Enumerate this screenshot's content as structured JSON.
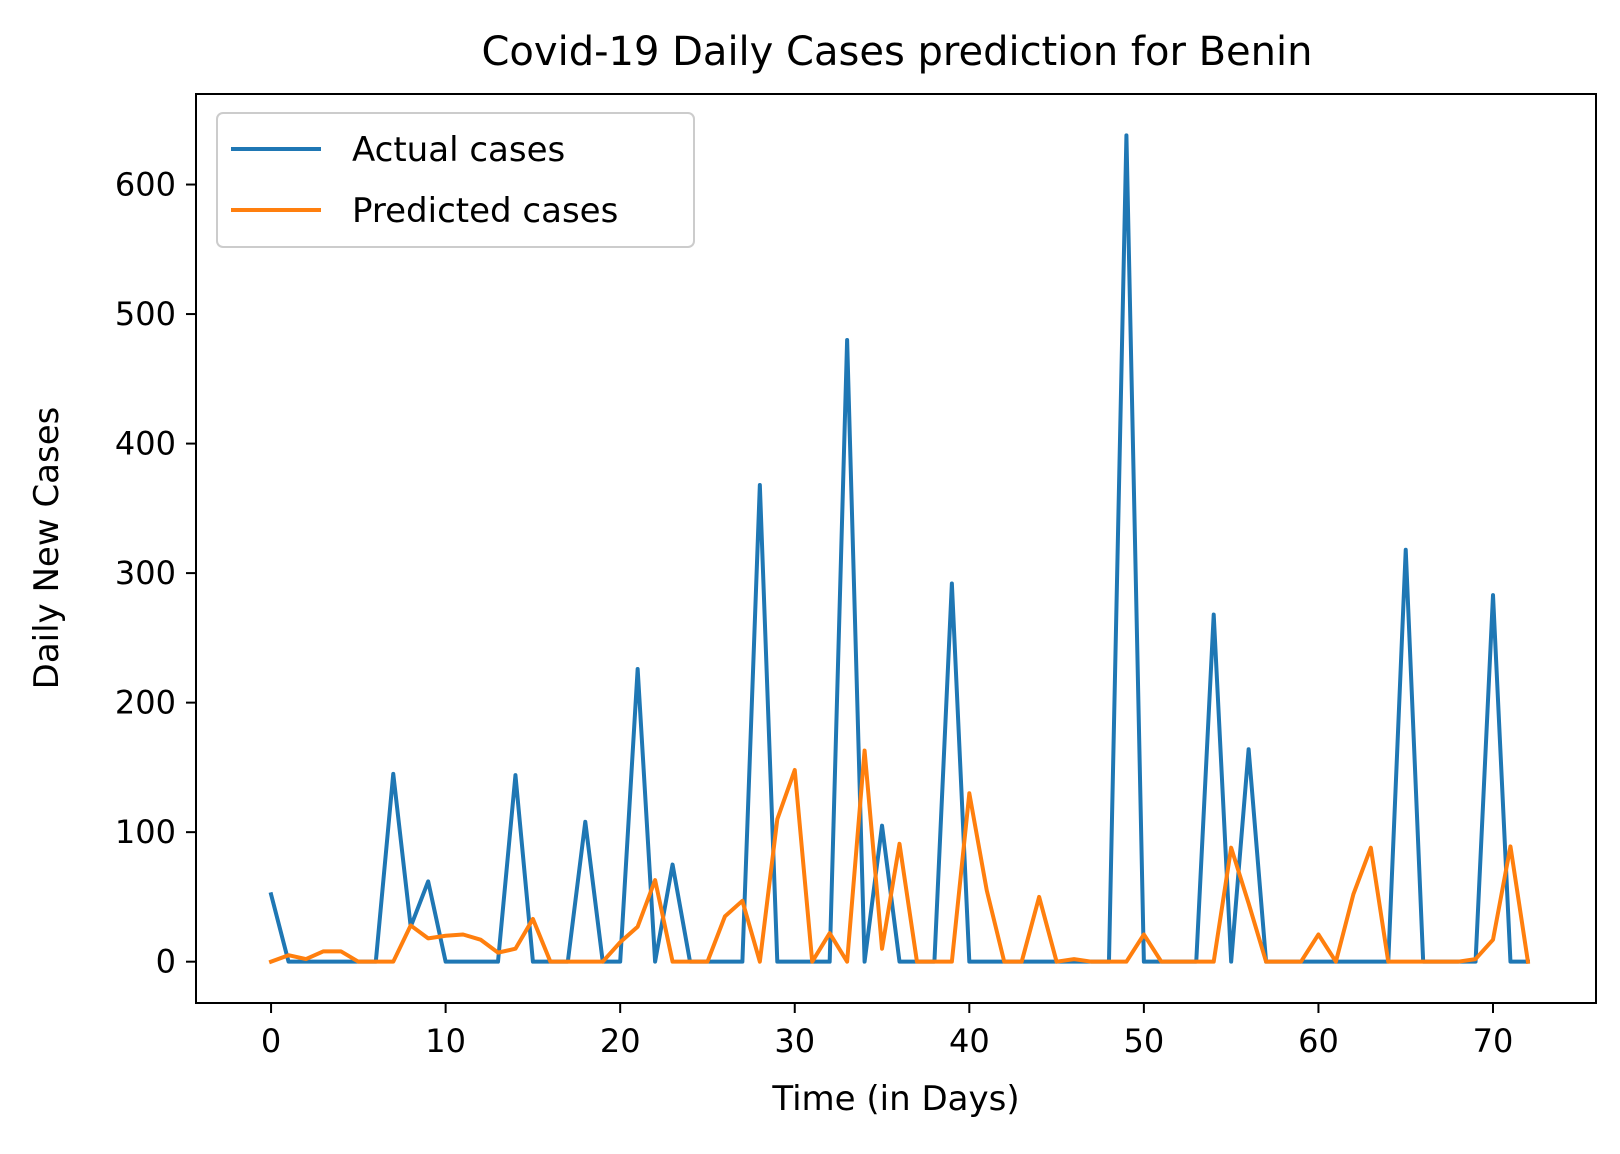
{
  "chart_data": {
    "type": "line",
    "title": "Covid-19 Daily Cases prediction for Benin",
    "xlabel": "Time (in Days)",
    "ylabel": "Daily New Cases",
    "xlim": [
      -4.3,
      75.9
    ],
    "ylim": [
      -31.9,
      669.9
    ],
    "xticks": [
      0,
      10,
      20,
      30,
      40,
      50,
      60,
      70
    ],
    "yticks": [
      0,
      100,
      200,
      300,
      400,
      500,
      600
    ],
    "grid": false,
    "legend_position": "top-left",
    "x": [
      0,
      1,
      2,
      3,
      4,
      5,
      6,
      7,
      8,
      9,
      10,
      11,
      12,
      13,
      14,
      15,
      16,
      17,
      18,
      19,
      20,
      21,
      22,
      23,
      24,
      25,
      26,
      27,
      28,
      29,
      30,
      31,
      32,
      33,
      34,
      35,
      36,
      37,
      38,
      39,
      40,
      41,
      42,
      43,
      44,
      45,
      46,
      47,
      48,
      49,
      50,
      51,
      52,
      53,
      54,
      55,
      56,
      57,
      58,
      59,
      60,
      61,
      62,
      63,
      64,
      65,
      66,
      67,
      68,
      69,
      70,
      71,
      72
    ],
    "series": [
      {
        "name": "Actual cases",
        "color": "#1f77b4",
        "values": [
          52,
          0,
          0,
          0,
          0,
          0,
          0,
          145,
          27,
          62,
          0,
          0,
          0,
          0,
          144,
          0,
          0,
          0,
          108,
          0,
          0,
          226,
          0,
          75,
          0,
          0,
          0,
          0,
          368,
          0,
          0,
          0,
          0,
          480,
          0,
          105,
          0,
          0,
          0,
          292,
          0,
          0,
          0,
          0,
          0,
          0,
          0,
          0,
          0,
          638,
          0,
          0,
          0,
          0,
          268,
          0,
          164,
          0,
          0,
          0,
          0,
          0,
          0,
          0,
          0,
          318,
          0,
          0,
          0,
          0,
          283,
          0,
          0
        ]
      },
      {
        "name": "Predicted cases",
        "color": "#ff7f0e",
        "values": [
          0,
          5,
          2,
          8,
          8,
          0,
          0,
          0,
          28,
          18,
          20,
          21,
          17,
          7,
          10,
          33,
          0,
          0,
          0,
          0,
          15,
          27,
          63,
          0,
          0,
          0,
          35,
          47,
          0,
          110,
          148,
          0,
          22,
          0,
          163,
          10,
          91,
          0,
          0,
          0,
          130,
          55,
          0,
          0,
          50,
          0,
          2,
          0,
          0,
          0,
          21,
          0,
          0,
          0,
          0,
          88,
          45,
          0,
          0,
          0,
          21,
          0,
          52,
          88,
          0,
          0,
          0,
          0,
          0,
          2,
          17,
          89,
          0
        ]
      }
    ]
  }
}
